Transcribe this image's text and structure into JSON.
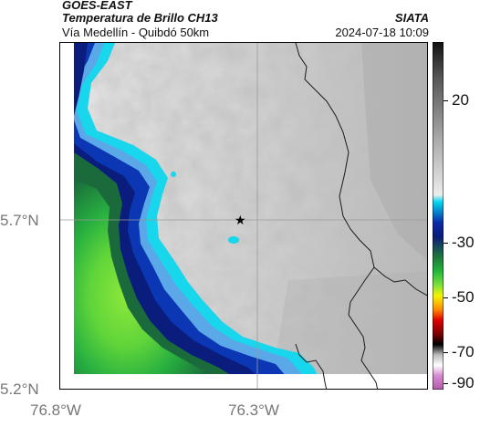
{
  "header": {
    "satellite": "GOES-EAST",
    "product": "Temperatura de Brillo CH13",
    "route": "Vía Medellín - Quibdó 50km",
    "org": "SIATA",
    "datetime": "2024-07-18 10:09"
  },
  "axes": {
    "lat_labels": [
      "5.7°N",
      "5.2°N"
    ],
    "lon_labels": [
      "76.8°W",
      "76.3°W"
    ]
  },
  "colorbar": {
    "ticks": [
      "20",
      "-30",
      "-50",
      "-70",
      "-90"
    ],
    "colors": {
      "cyan": "#00d8f0",
      "blue": "#0a2aa8",
      "navy": "#0a1c7a",
      "green_dark": "#1f7a3a",
      "green": "#22b83a",
      "green_light": "#7fe23a",
      "yellow": "#f4f400",
      "orange": "#ff8a00",
      "red": "#e00000",
      "dark_red": "#7a0000",
      "black": "#000000",
      "magenta": "#b05aa8"
    }
  },
  "map": {
    "marker": "star-icon"
  }
}
